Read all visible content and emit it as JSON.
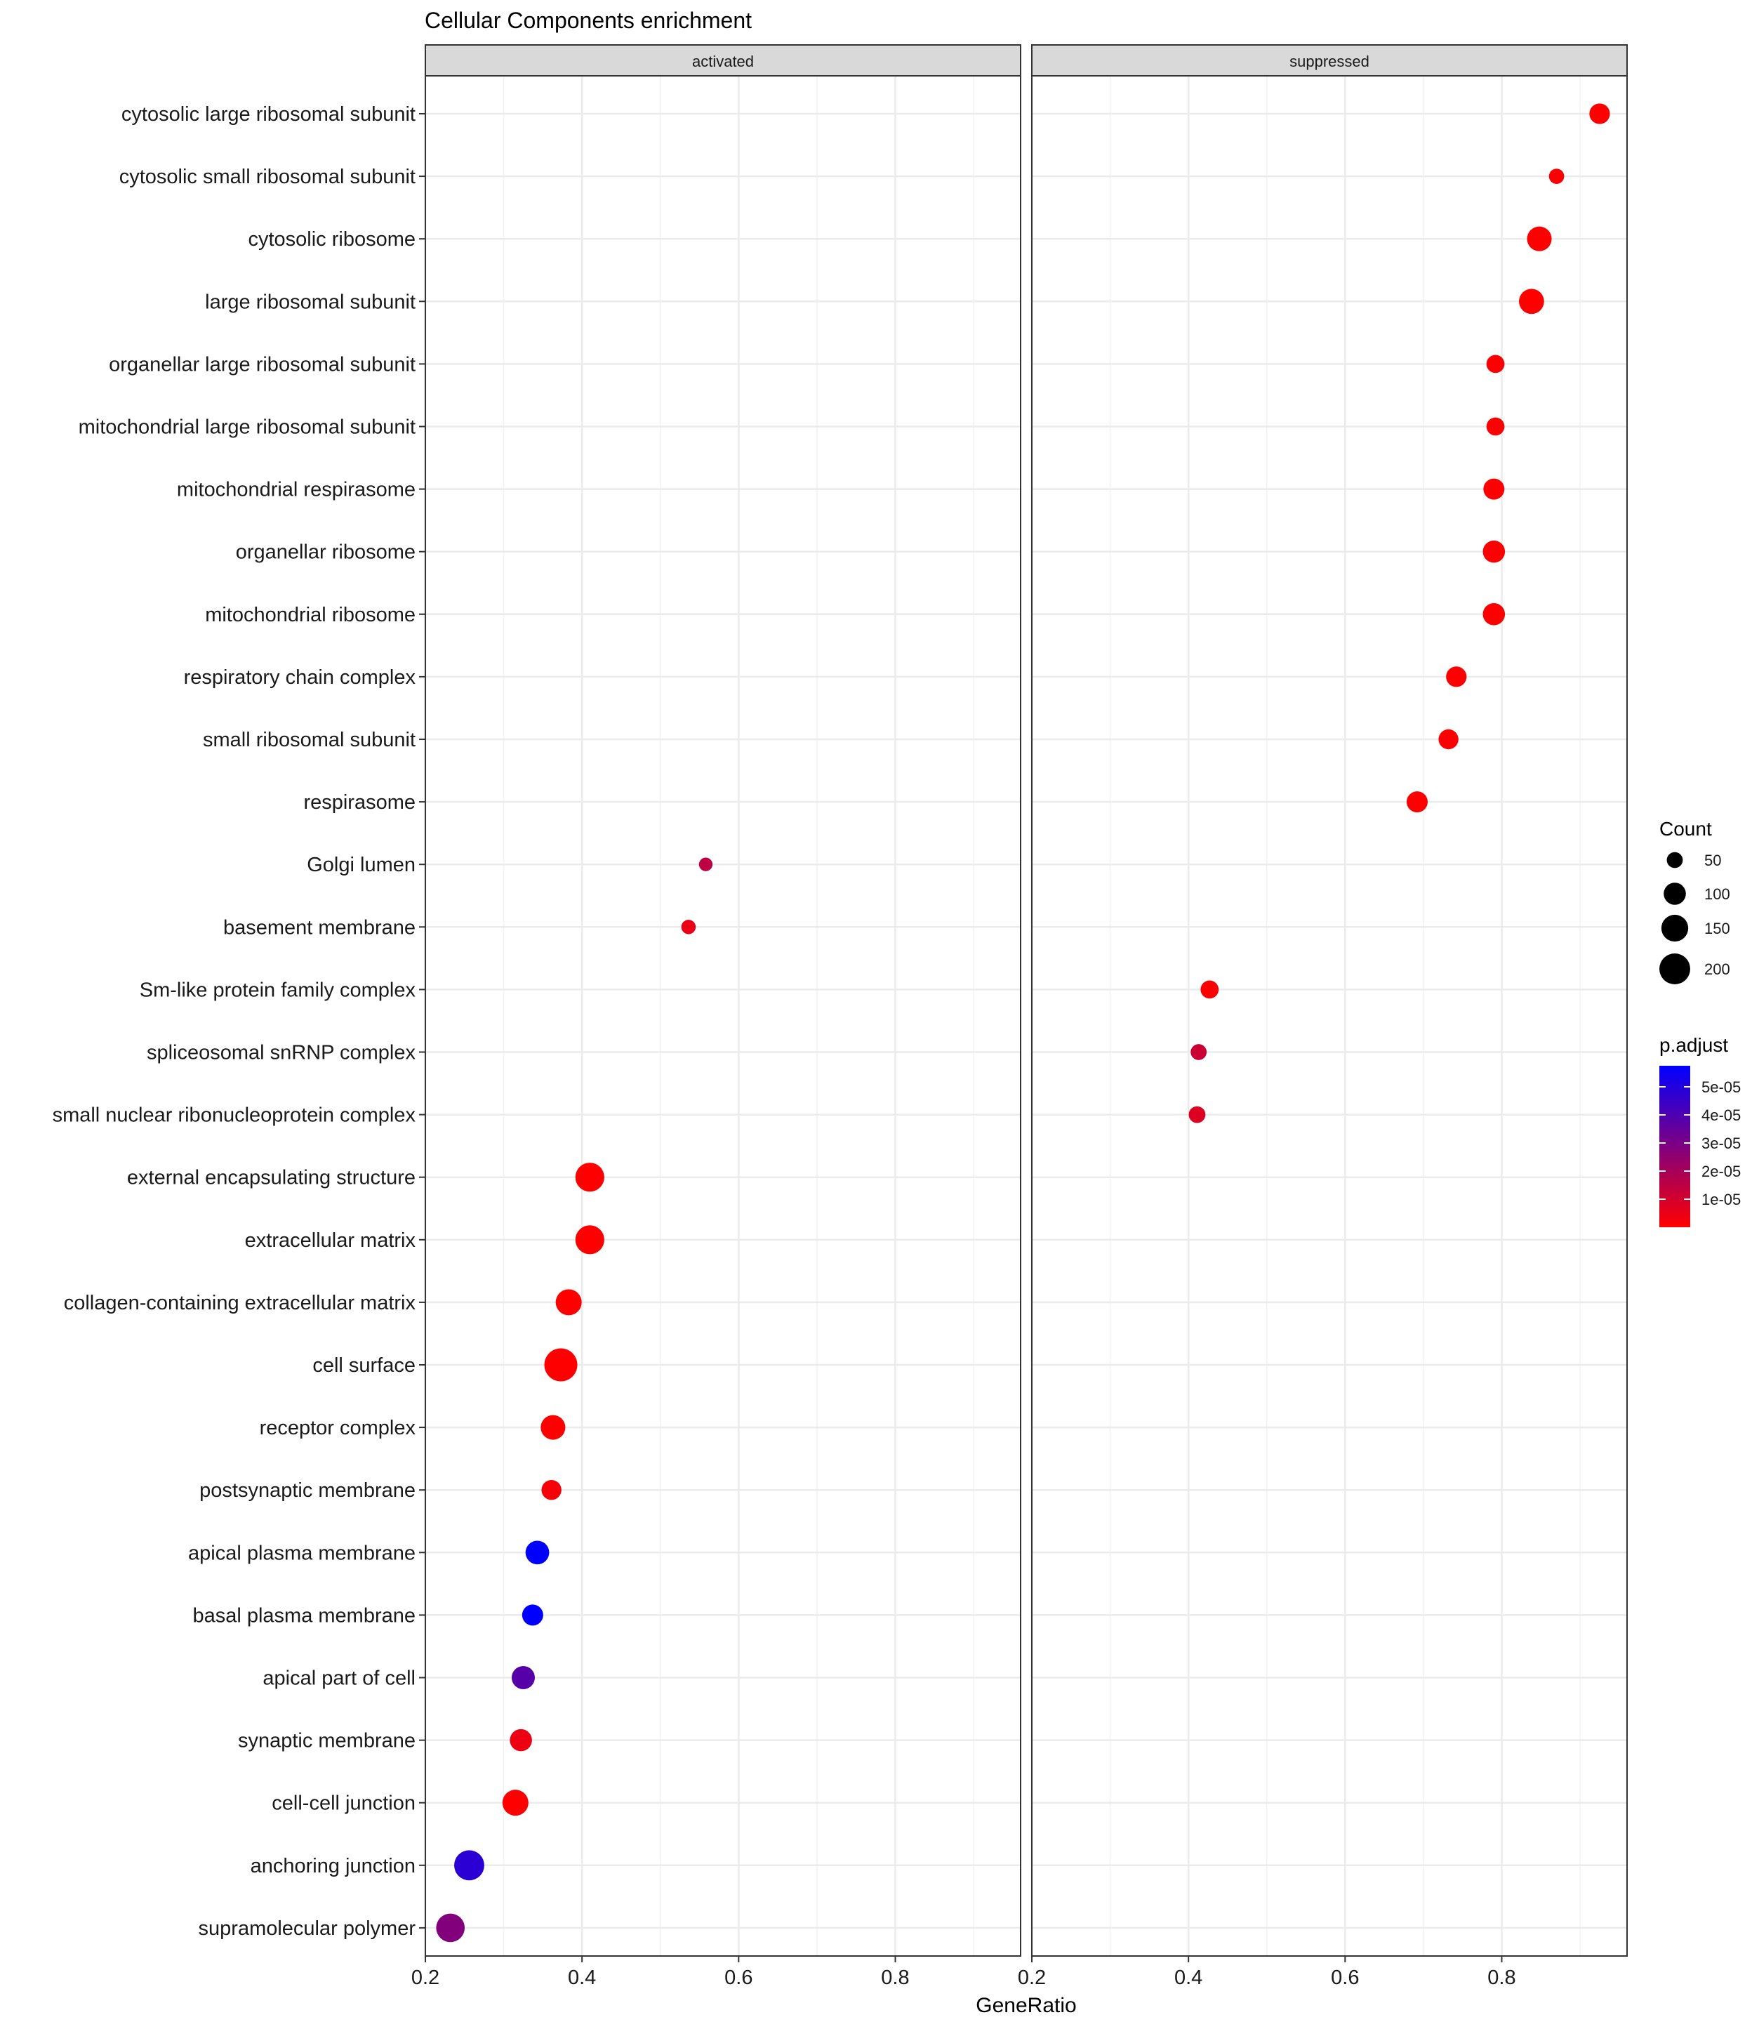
{
  "chart_data": {
    "type": "scatter",
    "title": "Cellular Components enrichment",
    "xlabel": "GeneRatio",
    "ylabel": "",
    "xlim": [
      0.2,
      0.96
    ],
    "x_ticks": [
      "0.2",
      "0.4",
      "0.6",
      "0.8"
    ],
    "x_tick_values": [
      0.2,
      0.4,
      0.6,
      0.8
    ],
    "panels": [
      "activated",
      "suppressed"
    ],
    "categories": [
      "cytosolic large ribosomal subunit",
      "cytosolic small ribosomal subunit",
      "cytosolic ribosome",
      "large ribosomal subunit",
      "organellar large ribosomal subunit",
      "mitochondrial large ribosomal subunit",
      "mitochondrial respirasome",
      "organellar ribosome",
      "mitochondrial ribosome",
      "respiratory chain complex",
      "small ribosomal subunit",
      "respirasome",
      "Golgi lumen",
      "basement membrane",
      "Sm-like protein family complex",
      "spliceosomal snRNP complex",
      "small nuclear ribonucleoprotein complex",
      "external encapsulating structure",
      "extracellular matrix",
      "collagen-containing extracellular matrix",
      "cell surface",
      "receptor complex",
      "postsynaptic membrane",
      "apical plasma membrane",
      "basal plasma membrane",
      "apical part of cell",
      "synaptic membrane",
      "cell-cell junction",
      "anchoring junction",
      "supramolecular polymer"
    ],
    "points": [
      {
        "panel": "suppressed",
        "term": "cytosolic large ribosomal subunit",
        "x": 0.925,
        "count": 85,
        "p_adjust": 0.0
      },
      {
        "panel": "suppressed",
        "term": "cytosolic small ribosomal subunit",
        "x": 0.87,
        "count": 45,
        "p_adjust": 5e-07
      },
      {
        "panel": "suppressed",
        "term": "cytosolic ribosome",
        "x": 0.848,
        "count": 125,
        "p_adjust": 0.0
      },
      {
        "panel": "suppressed",
        "term": "large ribosomal subunit",
        "x": 0.838,
        "count": 130,
        "p_adjust": 0.0
      },
      {
        "panel": "suppressed",
        "term": "organellar large ribosomal subunit",
        "x": 0.792,
        "count": 65,
        "p_adjust": 5e-07
      },
      {
        "panel": "suppressed",
        "term": "mitochondrial large ribosomal subunit",
        "x": 0.792,
        "count": 65,
        "p_adjust": 5e-07
      },
      {
        "panel": "suppressed",
        "term": "mitochondrial respirasome",
        "x": 0.79,
        "count": 90,
        "p_adjust": 0.0
      },
      {
        "panel": "suppressed",
        "term": "organellar ribosome",
        "x": 0.79,
        "count": 100,
        "p_adjust": 0.0
      },
      {
        "panel": "suppressed",
        "term": "mitochondrial ribosome",
        "x": 0.79,
        "count": 100,
        "p_adjust": 0.0
      },
      {
        "panel": "suppressed",
        "term": "respiratory chain complex",
        "x": 0.742,
        "count": 85,
        "p_adjust": 0.0
      },
      {
        "panel": "suppressed",
        "term": "small ribosomal subunit",
        "x": 0.732,
        "count": 80,
        "p_adjust": 0.0
      },
      {
        "panel": "suppressed",
        "term": "respirasome",
        "x": 0.692,
        "count": 90,
        "p_adjust": 0.0
      },
      {
        "panel": "activated",
        "term": "Golgi lumen",
        "x": 0.558,
        "count": 35,
        "p_adjust": 1.5e-05
      },
      {
        "panel": "activated",
        "term": "basement membrane",
        "x": 0.536,
        "count": 40,
        "p_adjust": 5e-06
      },
      {
        "panel": "suppressed",
        "term": "Sm-like protein family complex",
        "x": 0.427,
        "count": 65,
        "p_adjust": 5e-07
      },
      {
        "panel": "suppressed",
        "term": "spliceosomal snRNP complex",
        "x": 0.413,
        "count": 50,
        "p_adjust": 1.2e-05
      },
      {
        "panel": "suppressed",
        "term": "small nuclear ribonucleoprotein complex",
        "x": 0.411,
        "count": 55,
        "p_adjust": 8e-06
      },
      {
        "panel": "activated",
        "term": "external encapsulating structure",
        "x": 0.41,
        "count": 175,
        "p_adjust": 0.0
      },
      {
        "panel": "activated",
        "term": "extracellular matrix",
        "x": 0.41,
        "count": 175,
        "p_adjust": 0.0
      },
      {
        "panel": "activated",
        "term": "collagen-containing extracellular matrix",
        "x": 0.383,
        "count": 140,
        "p_adjust": 0.0
      },
      {
        "panel": "activated",
        "term": "cell surface",
        "x": 0.373,
        "count": 230,
        "p_adjust": 0.0
      },
      {
        "panel": "activated",
        "term": "receptor complex",
        "x": 0.363,
        "count": 125,
        "p_adjust": 0.0
      },
      {
        "panel": "activated",
        "term": "postsynaptic membrane",
        "x": 0.361,
        "count": 80,
        "p_adjust": 2e-06
      },
      {
        "panel": "activated",
        "term": "apical plasma membrane",
        "x": 0.343,
        "count": 115,
        "p_adjust": 5.8e-05
      },
      {
        "panel": "activated",
        "term": "basal plasma membrane",
        "x": 0.337,
        "count": 90,
        "p_adjust": 5.8e-05
      },
      {
        "panel": "activated",
        "term": "apical part of cell",
        "x": 0.325,
        "count": 110,
        "p_adjust": 3.8e-05
      },
      {
        "panel": "activated",
        "term": "synaptic membrane",
        "x": 0.322,
        "count": 100,
        "p_adjust": 4e-06
      },
      {
        "panel": "activated",
        "term": "cell-cell junction",
        "x": 0.315,
        "count": 140,
        "p_adjust": 0.0
      },
      {
        "panel": "activated",
        "term": "anchoring junction",
        "x": 0.256,
        "count": 190,
        "p_adjust": 4.8e-05
      },
      {
        "panel": "activated",
        "term": "supramolecular polymer",
        "x": 0.232,
        "count": 170,
        "p_adjust": 2.8e-05
      }
    ],
    "size_legend": {
      "title": "Count",
      "values": [
        50,
        100,
        150,
        200
      ],
      "labels": [
        "50",
        "100",
        "150",
        "200"
      ]
    },
    "color_legend": {
      "title": "p.adjust",
      "low_color": "#FF0000",
      "high_color": "#0000FF",
      "range": [
        0,
        5.75e-05
      ],
      "tick_values": [
        1e-05,
        2e-05,
        3e-05,
        4e-05,
        5e-05
      ],
      "tick_labels": [
        "1e-05",
        "2e-05",
        "3e-05",
        "4e-05",
        "5e-05"
      ]
    }
  }
}
